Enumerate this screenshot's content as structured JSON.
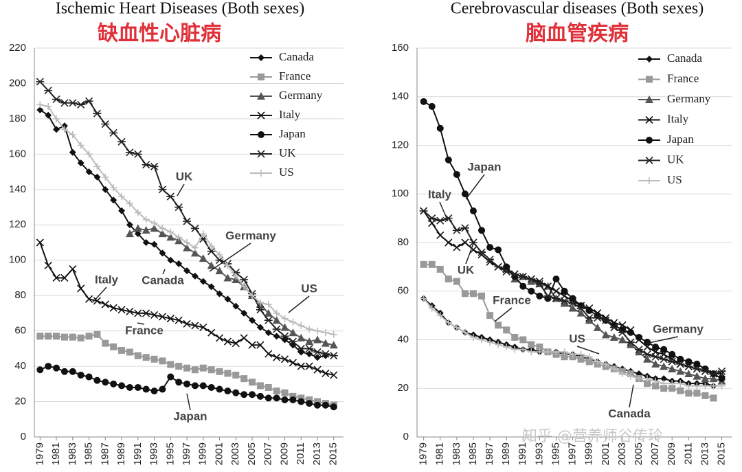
{
  "chart_data": [
    {
      "type": "line",
      "title": "Ischemic Heart Diseases (Both sexes)",
      "subtitle": "缺血性心脏病",
      "x": [
        1979,
        1980,
        1981,
        1982,
        1983,
        1984,
        1985,
        1986,
        1987,
        1988,
        1989,
        1990,
        1991,
        1992,
        1993,
        1994,
        1995,
        1996,
        1997,
        1998,
        1999,
        2000,
        2001,
        2002,
        2003,
        2004,
        2005,
        2006,
        2007,
        2008,
        2009,
        2010,
        2011,
        2012,
        2013,
        2014,
        2015
      ],
      "xlim": [
        1978.3,
        2016.2
      ],
      "xticks": [
        1979,
        1981,
        1983,
        1985,
        1987,
        1989,
        1991,
        1993,
        1995,
        1997,
        1999,
        2001,
        2003,
        2005,
        2007,
        2009,
        2011,
        2013,
        2015
      ],
      "ylim": [
        0,
        220
      ],
      "yticks": [
        0,
        20,
        40,
        60,
        80,
        100,
        120,
        140,
        160,
        180,
        200,
        220
      ],
      "legend": "upper right",
      "series": [
        {
          "name": "Canada",
          "color": "#111111",
          "marker": "diamond",
          "values": [
            185,
            182,
            174,
            176,
            161,
            155,
            150,
            147,
            140,
            134,
            128,
            120,
            115,
            110,
            109,
            104,
            100,
            98,
            94,
            91,
            88,
            85,
            81,
            78,
            74,
            70,
            66,
            62,
            59,
            57,
            55,
            52,
            48,
            47,
            45,
            46,
            null
          ]
        },
        {
          "name": "France",
          "color": "#999999",
          "marker": "square",
          "values": [
            57,
            57,
            57,
            56.5,
            56.5,
            56,
            57,
            58,
            53,
            51,
            49,
            48,
            46,
            45,
            44,
            43,
            41,
            40,
            39,
            38,
            39,
            38,
            37,
            36,
            35,
            33,
            31,
            29,
            28,
            26,
            25,
            23,
            22,
            21,
            20,
            19,
            18
          ]
        },
        {
          "name": "Germany",
          "color": "#555555",
          "marker": "triangle",
          "values": [
            null,
            null,
            null,
            null,
            null,
            null,
            null,
            null,
            null,
            null,
            null,
            115,
            118,
            117,
            118,
            115,
            113,
            111,
            107,
            104,
            101,
            97,
            94,
            90,
            89,
            85,
            80,
            75,
            70,
            66,
            62,
            59,
            56,
            54,
            55,
            53,
            52
          ]
        },
        {
          "name": "Italy",
          "color": "#111111",
          "marker": "x",
          "values": [
            110,
            97,
            90,
            90,
            95,
            84,
            78,
            77,
            75,
            73,
            72,
            71,
            70,
            70,
            69,
            68,
            67,
            66,
            64,
            63,
            62,
            59,
            56,
            54,
            53,
            56,
            52,
            52,
            47,
            45,
            44,
            42,
            40,
            40,
            38,
            36,
            35
          ]
        },
        {
          "name": "Japan",
          "color": "#111111",
          "marker": "circle",
          "values": [
            38,
            40,
            39,
            37,
            37,
            35,
            34,
            32,
            31,
            30,
            29,
            28,
            28,
            27,
            26,
            27,
            34,
            31,
            30,
            29,
            29,
            28,
            27,
            26,
            25,
            24,
            24,
            23,
            22,
            22,
            21,
            21,
            20,
            19,
            18,
            18,
            17
          ]
        },
        {
          "name": "UK",
          "color": "#222222",
          "marker": "star",
          "values": [
            201,
            196,
            191,
            189,
            189,
            188,
            190,
            183,
            177,
            172,
            167,
            161,
            160,
            154,
            153,
            140,
            136,
            130,
            122,
            118,
            112,
            105,
            100,
            98,
            93,
            89,
            81,
            72,
            66,
            61,
            57,
            54,
            50,
            50,
            48,
            47,
            46
          ]
        },
        {
          "name": "US",
          "color": "#bbbbbb",
          "marker": "plus",
          "values": [
            188,
            187,
            180,
            174,
            171,
            165,
            160,
            153,
            147,
            141,
            136,
            132,
            127,
            123,
            121,
            118,
            116,
            113,
            110,
            107,
            115,
            108,
            103,
            97,
            91,
            85,
            80,
            76,
            75,
            70,
            67,
            65,
            63,
            61,
            60,
            59,
            58
          ]
        }
      ],
      "annotations": [
        "UK",
        "Germany",
        "Italy",
        "Canada",
        "US",
        "France",
        "Japan"
      ]
    },
    {
      "type": "line",
      "title": "Cerebrovascular diseases (Both sexes)",
      "subtitle": "脑血管疾病",
      "x": [
        1979,
        1980,
        1981,
        1982,
        1983,
        1984,
        1985,
        1986,
        1987,
        1988,
        1989,
        1990,
        1991,
        1992,
        1993,
        1994,
        1995,
        1996,
        1997,
        1998,
        1999,
        2000,
        2001,
        2002,
        2003,
        2004,
        2005,
        2006,
        2007,
        2008,
        2009,
        2010,
        2011,
        2012,
        2013,
        2014,
        2015
      ],
      "xlim": [
        1978.2,
        2016.2
      ],
      "xticks": [
        1979,
        1981,
        1983,
        1985,
        1987,
        1989,
        1991,
        1993,
        1995,
        1997,
        1999,
        2001,
        2003,
        2005,
        2007,
        2009,
        2011,
        2013,
        2015
      ],
      "ylim": [
        0,
        160
      ],
      "yticks": [
        0,
        20,
        40,
        60,
        80,
        100,
        120,
        140,
        160
      ],
      "legend": "upper right",
      "series": [
        {
          "name": "Canada",
          "color": "#111111",
          "marker": "diamond",
          "values": [
            57,
            54,
            51,
            47,
            45,
            43,
            42,
            41,
            40,
            39,
            38,
            37,
            36,
            36,
            35,
            35,
            35,
            34,
            34,
            33,
            32,
            31,
            30,
            29,
            28,
            27,
            26,
            25,
            24,
            24,
            23,
            23,
            22,
            22,
            22,
            21,
            null
          ]
        },
        {
          "name": "France",
          "color": "#999999",
          "marker": "square",
          "values": [
            71,
            71,
            69,
            65,
            64,
            59,
            59,
            58,
            50,
            46,
            44,
            41,
            40,
            38,
            37,
            35,
            34,
            33,
            33,
            32,
            31,
            30,
            29,
            28,
            27,
            26,
            24,
            22,
            21,
            20,
            20,
            19,
            18,
            18,
            17,
            16,
            null
          ]
        },
        {
          "name": "Germany",
          "color": "#555555",
          "marker": "triangle",
          "values": [
            null,
            null,
            null,
            null,
            null,
            null,
            null,
            null,
            null,
            null,
            null,
            65,
            66,
            64,
            63,
            62,
            57,
            55,
            53,
            51,
            48,
            45,
            42,
            41,
            40,
            38,
            35,
            32,
            30,
            29,
            28,
            27,
            26,
            25,
            24,
            24,
            23
          ]
        },
        {
          "name": "Italy",
          "color": "#111111",
          "marker": "x",
          "values": [
            93,
            88,
            83,
            80,
            78,
            80,
            77,
            75,
            72,
            70,
            69,
            67,
            66,
            65,
            64,
            62,
            60,
            58,
            56,
            54,
            53,
            51,
            49,
            47,
            46,
            44,
            40,
            37,
            35,
            34,
            32,
            30,
            29,
            28,
            27,
            26,
            26
          ]
        },
        {
          "name": "Japan",
          "color": "#111111",
          "marker": "circle",
          "values": [
            138,
            136,
            127,
            114,
            108,
            100,
            93,
            85,
            78,
            77,
            70,
            66,
            62,
            60,
            58,
            57,
            65,
            60,
            57,
            54,
            52,
            50,
            48,
            46,
            44,
            43,
            41,
            39,
            37,
            36,
            34,
            32,
            31,
            30,
            28,
            26,
            24
          ]
        },
        {
          "name": "UK",
          "color": "#222222",
          "marker": "star",
          "values": [
            93,
            90,
            89,
            90,
            85,
            86,
            80,
            76,
            73,
            70,
            68,
            67,
            66,
            65,
            63,
            58,
            57,
            56,
            55,
            53,
            49,
            49,
            48,
            45,
            43,
            39,
            36,
            34,
            33,
            32,
            31,
            30,
            29,
            28,
            27,
            26,
            27
          ]
        },
        {
          "name": "US",
          "color": "#bbbbbb",
          "marker": "plus",
          "values": [
            57,
            53,
            50,
            47,
            45,
            43,
            41,
            40,
            39,
            38,
            37,
            36,
            36,
            35,
            35,
            35,
            35,
            35,
            34,
            34,
            33,
            31,
            30,
            28,
            26,
            25,
            24,
            24,
            23,
            22,
            22,
            22,
            21,
            21,
            21,
            21,
            21
          ]
        }
      ],
      "annotations": [
        "Japan",
        "Italy",
        "UK",
        "France",
        "US",
        "Germany",
        "Canada"
      ]
    }
  ],
  "watermark": "知乎 @营养师谷传玲"
}
